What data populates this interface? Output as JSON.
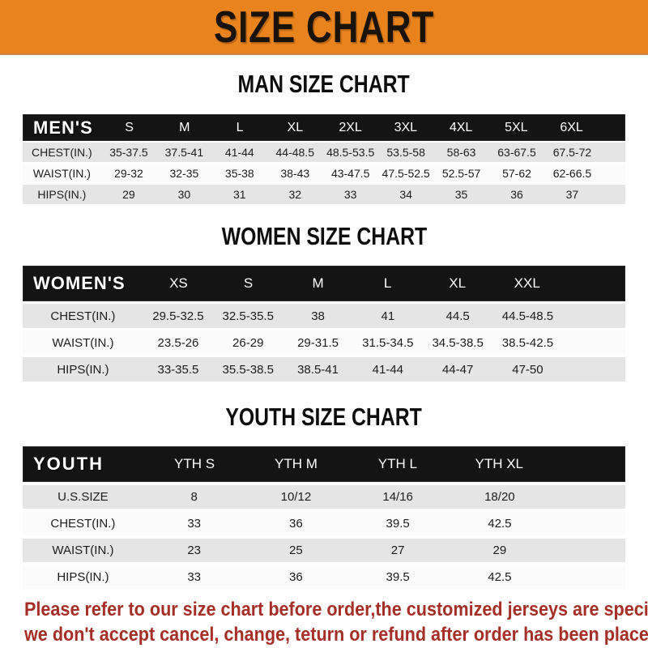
{
  "banner": {
    "title": "SIZE CHART",
    "bg_color": "#E8831D",
    "text_color": "#1A130A"
  },
  "sections": [
    {
      "key": "men",
      "heading": "MAN SIZE CHART",
      "label": "MEN'S",
      "columns": [
        "S",
        "M",
        "L",
        "XL",
        "2XL",
        "3XL",
        "4XL",
        "5XL",
        "6XL"
      ],
      "rows": [
        {
          "label": "CHEST(IN.)",
          "values": [
            "35-37.5",
            "37.5-41",
            "41-44",
            "44-48.5",
            "48.5-53.5",
            "53.5-58",
            "58-63",
            "63-67.5",
            "67.5-72"
          ]
        },
        {
          "label": "WAIST(IN.)",
          "values": [
            "29-32",
            "32-35",
            "35-38",
            "38-43",
            "43-47.5",
            "47.5-52.5",
            "52.5-57",
            "57-62",
            "62-66.5"
          ]
        },
        {
          "label": "HIPS(IN.)",
          "values": [
            "29",
            "30",
            "31",
            "32",
            "33",
            "34",
            "35",
            "36",
            "37"
          ]
        }
      ]
    },
    {
      "key": "women",
      "heading": "WOMEN SIZE CHART",
      "label": "WOMEN'S",
      "columns": [
        "XS",
        "S",
        "M",
        "L",
        "XL",
        "XXL"
      ],
      "rows": [
        {
          "label": "CHEST(IN.)",
          "values": [
            "29.5-32.5",
            "32.5-35.5",
            "38",
            "41",
            "44.5",
            "44.5-48.5"
          ]
        },
        {
          "label": "WAIST(IN.)",
          "values": [
            "23.5-26",
            "26-29",
            "29-31.5",
            "31.5-34.5",
            "34.5-38.5",
            "38.5-42.5"
          ]
        },
        {
          "label": "HIPS(IN.)",
          "values": [
            "33-35.5",
            "35.5-38.5",
            "38.5-41",
            "41-44",
            "44-47",
            "47-50"
          ]
        }
      ]
    },
    {
      "key": "youth",
      "heading": "YOUTH SIZE CHART",
      "label": "YOUTH",
      "columns": [
        "YTH S",
        "YTH M",
        "YTH L",
        "YTH XL"
      ],
      "rows": [
        {
          "label": "U.S.SIZE",
          "values": [
            "8",
            "10/12",
            "14/16",
            "18/20"
          ]
        },
        {
          "label": "CHEST(IN.)",
          "values": [
            "33",
            "36",
            "39.5",
            "42.5"
          ]
        },
        {
          "label": "WAIST(IN.)",
          "values": [
            "23",
            "25",
            "27",
            "29"
          ]
        },
        {
          "label": "HIPS(IN.)",
          "values": [
            "33",
            "36",
            "39.5",
            "42.5"
          ]
        }
      ]
    }
  ],
  "footer": {
    "line1": "Please refer to our size chart before order,the customized jerseys are special products,",
    "line2": "we don't accept cancel, change, teturn or refund after order has been placed!",
    "text_color": "#A42F27"
  },
  "colors": {
    "header_bar": "#141414",
    "row_shaded": "#E5E5E5",
    "row_plain": "#FBFBFB",
    "banner_orange": "#E8831D"
  }
}
